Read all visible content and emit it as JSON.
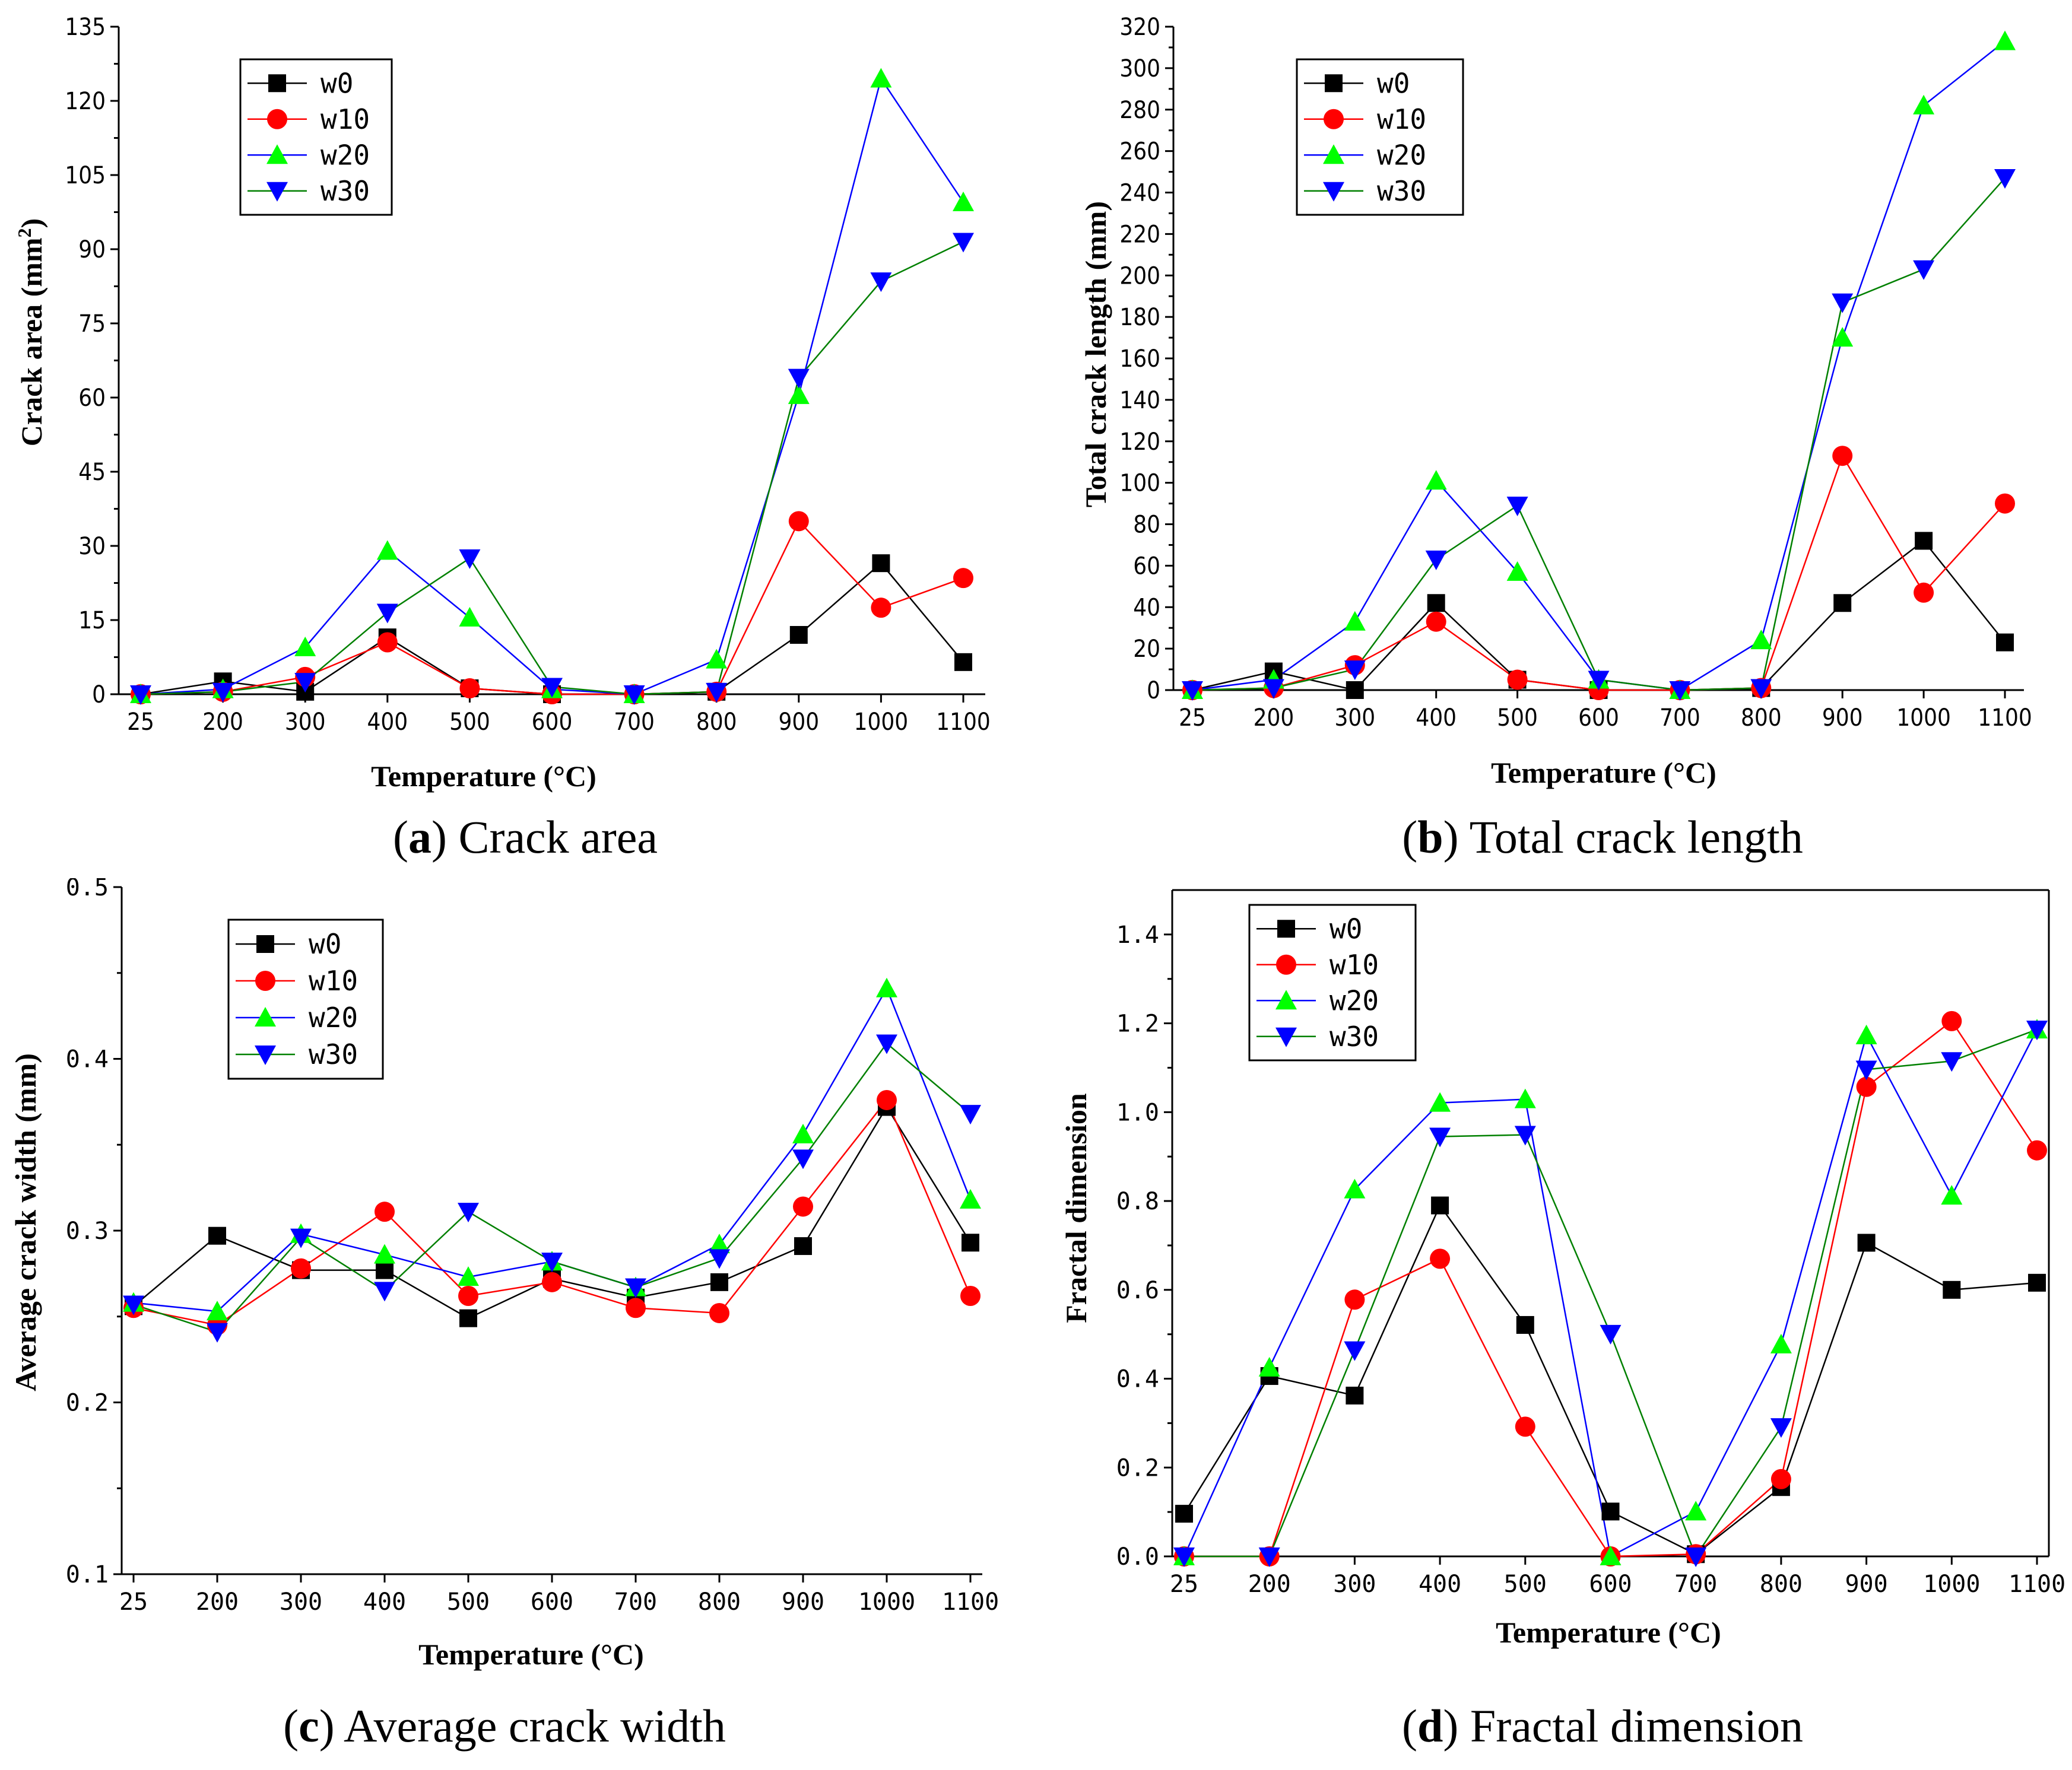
{
  "figure": {
    "series_names": [
      "w0",
      "w10",
      "w20",
      "w30"
    ],
    "series_colors": {
      "w0": {
        "line": "#000000",
        "marker": "#000000",
        "marker_shape": "square"
      },
      "w10": {
        "line": "#ff0000",
        "marker": "#ff0000",
        "marker_shape": "circle"
      },
      "w20": {
        "line": "#0000ff",
        "marker": "#00ff00",
        "marker_shape": "triangle-up"
      },
      "w30": {
        "line": "#008000",
        "marker": "#0000ff",
        "marker_shape": "triangle-down"
      }
    }
  },
  "panels": {
    "a": {
      "caption_letter": "a",
      "caption_open": "(",
      "caption_close": ")",
      "caption_text": " Crack area",
      "ylabel_main": "Crack area (mm",
      "ylabel_sup": "2",
      "ylabel_end": ")",
      "xlabel": "Temperature (°C)"
    },
    "b": {
      "caption_letter": "b",
      "caption_open": "(",
      "caption_close": ")",
      "caption_text": " Total crack length",
      "ylabel": "Total crack length (mm)",
      "xlabel": "Temperature (°C)"
    },
    "c": {
      "caption_letter": "c",
      "caption_open": "(",
      "caption_close": ")",
      "caption_text": " Average crack width",
      "ylabel": "Average crack width (mm)",
      "xlabel": "Temperature (°C)"
    },
    "d": {
      "caption_letter": "d",
      "caption_open": "(",
      "caption_close": ")",
      "caption_text": " Fractal dimension",
      "ylabel": "Fractal dimension",
      "xlabel": "Temperature (°C)"
    }
  },
  "chart_data": [
    {
      "id": "a",
      "type": "line",
      "title": "(a) Crack area",
      "xlabel": "Temperature (°C)",
      "ylabel": "Crack area (mm2)",
      "categories": [
        "25",
        "200",
        "300",
        "400",
        "500",
        "600",
        "700",
        "800",
        "900",
        "1000",
        "1100"
      ],
      "ylim": [
        0,
        135
      ],
      "yticks": [
        "0",
        "15",
        "30",
        "45",
        "60",
        "75",
        "90",
        "105",
        "120",
        "135"
      ],
      "legend_position": "top-left",
      "series": [
        {
          "name": "w0",
          "values": [
            0,
            2.6,
            0.5,
            11.5,
            1.2,
            0,
            0,
            0.5,
            12,
            26.5,
            6.5
          ]
        },
        {
          "name": "w10",
          "values": [
            0,
            0.5,
            3.5,
            10.5,
            1.2,
            0,
            0,
            0.5,
            35,
            17.5,
            23.5
          ]
        },
        {
          "name": "w20",
          "values": [
            0,
            1,
            9.5,
            29,
            15.5,
            1,
            0,
            7,
            60.5,
            124.5,
            99.5
          ]
        },
        {
          "name": "w30",
          "values": [
            0,
            0.5,
            2.5,
            16.5,
            27.5,
            1.5,
            0,
            0.5,
            64,
            83.5,
            91.5
          ]
        }
      ]
    },
    {
      "id": "b",
      "type": "line",
      "title": "(b) Total crack length",
      "xlabel": "Temperature (°C)",
      "ylabel": "Total crack length (mm)",
      "categories": [
        "25",
        "200",
        "300",
        "400",
        "500",
        "600",
        "700",
        "800",
        "900",
        "1000",
        "1100"
      ],
      "ylim": [
        0,
        320
      ],
      "yticks": [
        "0",
        "20",
        "40",
        "60",
        "80",
        "100",
        "120",
        "140",
        "160",
        "180",
        "200",
        "220",
        "240",
        "260",
        "280",
        "300",
        "320"
      ],
      "legend_position": "top-left",
      "series": [
        {
          "name": "w0",
          "values": [
            0,
            9,
            0,
            42,
            5,
            0,
            0,
            1,
            42,
            72,
            23
          ]
        },
        {
          "name": "w10",
          "values": [
            0,
            1,
            12,
            33,
            5,
            0,
            0,
            1,
            113,
            47,
            90
          ]
        },
        {
          "name": "w20",
          "values": [
            0,
            5,
            33,
            101,
            57,
            5,
            0,
            24,
            170,
            282,
            313
          ]
        },
        {
          "name": "w30",
          "values": [
            0,
            1,
            10,
            63,
            89,
            5,
            0,
            1,
            187,
            203,
            247
          ]
        }
      ]
    },
    {
      "id": "c",
      "type": "line",
      "title": "(c) Average crack width",
      "xlabel": "Temperature (°C)",
      "ylabel": "Average crack width (mm)",
      "categories": [
        "25",
        "200",
        "300",
        "400",
        "500",
        "600",
        "700",
        "800",
        "900",
        "1000",
        "1100"
      ],
      "ylim": [
        0.1,
        0.5
      ],
      "yticks": [
        "0.1",
        "0.2",
        "0.3",
        "0.4",
        "0.5"
      ],
      "legend_position": "top-left",
      "series": [
        {
          "name": "w0",
          "values": [
            0.256,
            0.297,
            0.277,
            0.277,
            0.249,
            0.272,
            0.261,
            0.27,
            0.291,
            0.372,
            0.293
          ]
        },
        {
          "name": "w10",
          "values": [
            0.255,
            0.245,
            0.278,
            0.311,
            0.262,
            0.27,
            0.255,
            0.252,
            0.314,
            0.376,
            0.262
          ]
        },
        {
          "name": "w20",
          "values": [
            0.258,
            0.253,
            0.298,
            0.286,
            0.273,
            0.282,
            0.267,
            0.292,
            0.356,
            0.441,
            0.318
          ]
        },
        {
          "name": "w30",
          "values": [
            0.257,
            0.241,
            0.296,
            0.265,
            0.311,
            0.282,
            0.267,
            0.284,
            0.342,
            0.409,
            0.368
          ]
        }
      ]
    },
    {
      "id": "d",
      "type": "line",
      "title": "(d) Fractal dimension",
      "xlabel": "Temperature (°C)",
      "ylabel": "Fractal dimension",
      "categories": [
        "25",
        "200",
        "300",
        "400",
        "500",
        "600",
        "700",
        "800",
        "900",
        "1000",
        "1100"
      ],
      "ylim": [
        0,
        1.5
      ],
      "yticks": [
        "0.0",
        "0.2",
        "0.4",
        "0.6",
        "0.8",
        "1.0",
        "1.2",
        "1.4"
      ],
      "legend_position": "top-left",
      "series": [
        {
          "name": "w0",
          "values": [
            0.096,
            0.406,
            0.362,
            0.79,
            0.521,
            0.101,
            0.005,
            0.156,
            0.706,
            0.6,
            0.616
          ]
        },
        {
          "name": "w10",
          "values": [
            0,
            0,
            0.578,
            0.67,
            0.292,
            0,
            0.005,
            0.174,
            1.057,
            1.205,
            0.914
          ]
        },
        {
          "name": "w20",
          "values": [
            0,
            0.425,
            0.826,
            1.021,
            1.029,
            0,
            0.101,
            0.477,
            1.173,
            0.812,
            1.186
          ]
        },
        {
          "name": "w30",
          "values": [
            0,
            0,
            0.464,
            0.945,
            0.949,
            0.501,
            0,
            0.291,
            1.096,
            1.115,
            1.186
          ]
        }
      ]
    }
  ]
}
